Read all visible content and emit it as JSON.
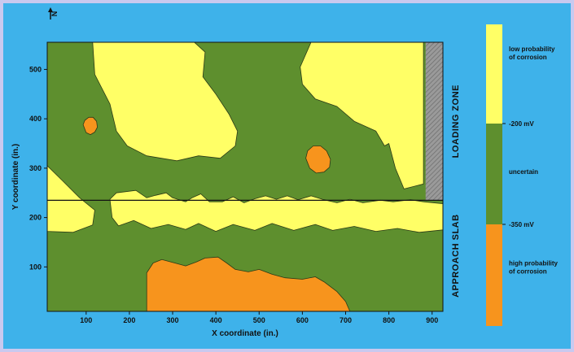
{
  "chart_data": {
    "type": "heatmap",
    "subtype": "contour-map",
    "title": "",
    "xlabel": "X coordinate (in.)",
    "ylabel": "Y coordinate (in.)",
    "xlim": [
      10,
      925
    ],
    "ylim": [
      10,
      555
    ],
    "xticks": [
      100,
      200,
      300,
      400,
      500,
      600,
      700,
      800,
      900
    ],
    "yticks": [
      100,
      200,
      300,
      400,
      500
    ],
    "grid": false,
    "boundary_line_y": 235,
    "hatched_strip_x": [
      885,
      925
    ],
    "zones": [
      {
        "label": "LOADING ZONE",
        "y_range": [
          235,
          555
        ]
      },
      {
        "label": "APPROACH SLAB",
        "y_range": [
          10,
          235
        ]
      }
    ],
    "north_arrow_label": "N",
    "legend": {
      "position": "right",
      "categories": [
        {
          "label": "low probability of corrosion",
          "color": "#ffff66"
        },
        {
          "label": "uncertain",
          "color": "#5e8f2e"
        },
        {
          "label": "high probability of corrosion",
          "color": "#f7941d"
        }
      ],
      "thresholds": [
        "-200 mV",
        "-350 mV"
      ]
    },
    "regions": [
      {
        "class": "uncertain",
        "color": "#5e8f2e",
        "points": [
          [
            10,
            10
          ],
          [
            925,
            10
          ],
          [
            925,
            555
          ],
          [
            10,
            555
          ]
        ]
      },
      {
        "class": "low",
        "color": "#ffff66",
        "points": [
          [
            115,
            555
          ],
          [
            350,
            555
          ],
          [
            375,
            535
          ],
          [
            370,
            485
          ],
          [
            400,
            450
          ],
          [
            430,
            410
          ],
          [
            450,
            375
          ],
          [
            445,
            345
          ],
          [
            410,
            320
          ],
          [
            360,
            325
          ],
          [
            310,
            315
          ],
          [
            240,
            325
          ],
          [
            195,
            345
          ],
          [
            170,
            375
          ],
          [
            155,
            430
          ],
          [
            120,
            490
          ]
        ]
      },
      {
        "class": "low",
        "color": "#ffff66",
        "points": [
          [
            620,
            555
          ],
          [
            880,
            555
          ],
          [
            880,
            268
          ],
          [
            835,
            258
          ],
          [
            815,
            300
          ],
          [
            800,
            350
          ],
          [
            790,
            345
          ],
          [
            770,
            375
          ],
          [
            720,
            395
          ],
          [
            680,
            425
          ],
          [
            630,
            440
          ],
          [
            600,
            470
          ],
          [
            595,
            505
          ]
        ]
      },
      {
        "class": "low",
        "color": "#ffff66",
        "points": [
          [
            10,
            305
          ],
          [
            45,
            275
          ],
          [
            85,
            240
          ],
          [
            120,
            215
          ],
          [
            115,
            185
          ],
          [
            70,
            170
          ],
          [
            10,
            172
          ]
        ]
      },
      {
        "class": "low",
        "color": "#ffff66",
        "points": [
          [
            155,
            237
          ],
          [
            170,
            250
          ],
          [
            215,
            255
          ],
          [
            240,
            240
          ],
          [
            260,
            245
          ],
          [
            285,
            250
          ],
          [
            300,
            240
          ],
          [
            330,
            232
          ],
          [
            345,
            240
          ],
          [
            365,
            248
          ],
          [
            385,
            232
          ],
          [
            415,
            232
          ],
          [
            440,
            242
          ],
          [
            465,
            230
          ],
          [
            490,
            238
          ],
          [
            515,
            244
          ],
          [
            540,
            237
          ],
          [
            565,
            244
          ],
          [
            590,
            236
          ],
          [
            620,
            244
          ],
          [
            650,
            236
          ],
          [
            680,
            230
          ],
          [
            710,
            237
          ],
          [
            740,
            230
          ],
          [
            780,
            235
          ],
          [
            810,
            232
          ],
          [
            850,
            236
          ],
          [
            880,
            232
          ],
          [
            925,
            228
          ],
          [
            925,
            175
          ],
          [
            870,
            170
          ],
          [
            820,
            178
          ],
          [
            770,
            172
          ],
          [
            720,
            182
          ],
          [
            670,
            174
          ],
          [
            630,
            186
          ],
          [
            580,
            174
          ],
          [
            530,
            188
          ],
          [
            490,
            174
          ],
          [
            440,
            186
          ],
          [
            400,
            172
          ],
          [
            360,
            188
          ],
          [
            330,
            176
          ],
          [
            290,
            186
          ],
          [
            250,
            178
          ],
          [
            210,
            194
          ],
          [
            175,
            183
          ],
          [
            160,
            200
          ]
        ]
      },
      {
        "class": "high",
        "color": "#f7941d",
        "points": [
          [
            240,
            10
          ],
          [
            240,
            88
          ],
          [
            255,
            108
          ],
          [
            275,
            115
          ],
          [
            305,
            108
          ],
          [
            330,
            102
          ],
          [
            355,
            110
          ],
          [
            375,
            118
          ],
          [
            405,
            120
          ],
          [
            425,
            108
          ],
          [
            445,
            95
          ],
          [
            475,
            90
          ],
          [
            500,
            95
          ],
          [
            530,
            85
          ],
          [
            560,
            78
          ],
          [
            600,
            75
          ],
          [
            630,
            80
          ],
          [
            650,
            70
          ],
          [
            680,
            50
          ],
          [
            700,
            30
          ],
          [
            710,
            10
          ]
        ]
      },
      {
        "class": "high",
        "color": "#f7941d",
        "points": [
          [
            93,
            388
          ],
          [
            97,
            397
          ],
          [
            106,
            403
          ],
          [
            116,
            403
          ],
          [
            124,
            395
          ],
          [
            126,
            383
          ],
          [
            120,
            373
          ],
          [
            110,
            368
          ],
          [
            100,
            372
          ]
        ]
      },
      {
        "class": "high",
        "color": "#f7941d",
        "points": [
          [
            608,
            320
          ],
          [
            612,
            335
          ],
          [
            625,
            345
          ],
          [
            642,
            345
          ],
          [
            656,
            335
          ],
          [
            665,
            318
          ],
          [
            663,
            302
          ],
          [
            650,
            292
          ],
          [
            632,
            290
          ],
          [
            617,
            300
          ]
        ]
      }
    ]
  }
}
